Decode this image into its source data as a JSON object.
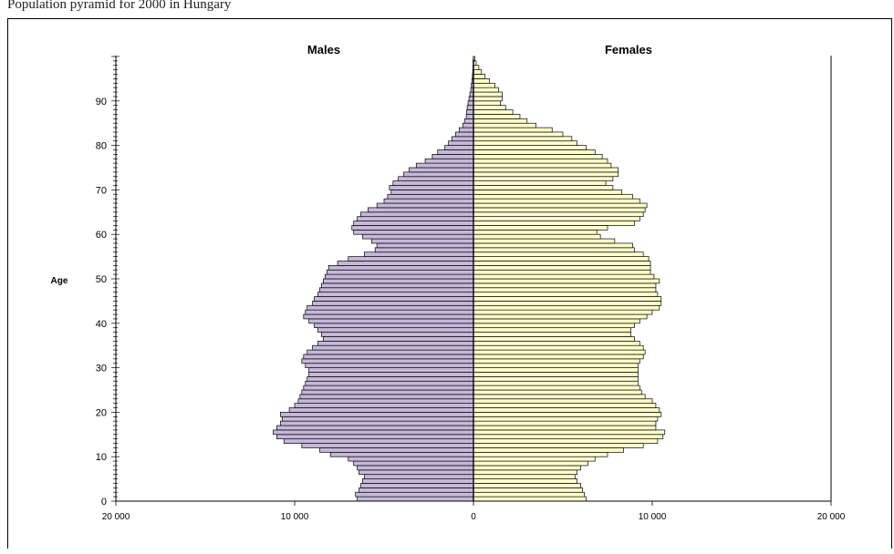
{
  "caption": "Population pyramid for 2000 in Hungary",
  "chart_data": {
    "type": "bar",
    "orientation": "horizontal",
    "title_left": "Males",
    "title_right": "Females",
    "ylabel": "Age",
    "xlim": [
      -20000,
      20000
    ],
    "ylim": [
      0,
      100
    ],
    "x_ticks": [
      -20000,
      -10000,
      0,
      10000,
      20000
    ],
    "x_tick_labels": [
      "20 000",
      "10 000",
      "0",
      "10 000",
      "20 000"
    ],
    "y_ticks": [
      0,
      10,
      20,
      30,
      40,
      50,
      60,
      70,
      80,
      90
    ],
    "y_tick_labels": [
      "0",
      "10",
      "20",
      "30",
      "40",
      "50",
      "60",
      "70",
      "80",
      "90"
    ],
    "colors": {
      "males": "#c5b8d9",
      "females": "#ffffcc",
      "outline": "#000000"
    },
    "ages": [
      0,
      1,
      2,
      3,
      4,
      5,
      6,
      7,
      8,
      9,
      10,
      11,
      12,
      13,
      14,
      15,
      16,
      17,
      18,
      19,
      20,
      21,
      22,
      23,
      24,
      25,
      26,
      27,
      28,
      29,
      30,
      31,
      32,
      33,
      34,
      35,
      36,
      37,
      38,
      39,
      40,
      41,
      42,
      43,
      44,
      45,
      46,
      47,
      48,
      49,
      50,
      51,
      52,
      53,
      54,
      55,
      56,
      57,
      58,
      59,
      60,
      61,
      62,
      63,
      64,
      65,
      66,
      67,
      68,
      69,
      70,
      71,
      72,
      73,
      74,
      75,
      76,
      77,
      78,
      79,
      80,
      81,
      82,
      83,
      84,
      85,
      86,
      87,
      88,
      89,
      90,
      91,
      92,
      93,
      94,
      95,
      96,
      97,
      98,
      99
    ],
    "series": [
      {
        "name": "Males",
        "values": [
          6500,
          6600,
          6400,
          6300,
          6200,
          6100,
          6400,
          6500,
          6700,
          7000,
          8000,
          8600,
          9600,
          10600,
          11000,
          11200,
          11000,
          10800,
          10700,
          10800,
          10300,
          10000,
          9800,
          9700,
          9600,
          9500,
          9400,
          9300,
          9200,
          9200,
          9400,
          9600,
          9500,
          9300,
          9000,
          8700,
          8400,
          8500,
          8700,
          8900,
          9200,
          9500,
          9400,
          9300,
          9000,
          8900,
          8700,
          8600,
          8500,
          8400,
          8300,
          8200,
          8100,
          7600,
          7000,
          6100,
          5500,
          5400,
          5700,
          6200,
          6700,
          6800,
          6700,
          6500,
          6300,
          5900,
          5400,
          5000,
          4800,
          4600,
          4700,
          4500,
          4200,
          3900,
          3600,
          3200,
          2700,
          2300,
          2000,
          1600,
          1400,
          1200,
          1000,
          800,
          600,
          500,
          400,
          380,
          350,
          300,
          250,
          200,
          150,
          120,
          90,
          60,
          40,
          25,
          15,
          10
        ]
      },
      {
        "name": "Females",
        "values": [
          6300,
          6200,
          6100,
          6000,
          5800,
          5700,
          5800,
          6000,
          6400,
          6800,
          7500,
          8400,
          9500,
          10300,
          10600,
          10700,
          10200,
          10200,
          10300,
          10500,
          10400,
          10200,
          10000,
          9600,
          9400,
          9300,
          9200,
          9200,
          9200,
          9200,
          9200,
          9300,
          9500,
          9600,
          9500,
          9300,
          9000,
          8800,
          8800,
          9000,
          9300,
          9700,
          10000,
          10400,
          10500,
          10500,
          10300,
          10200,
          10200,
          10400,
          10100,
          9900,
          9900,
          9900,
          9800,
          9500,
          9000,
          8900,
          7900,
          7100,
          6900,
          7500,
          9000,
          9300,
          9500,
          9600,
          9700,
          9300,
          8900,
          8300,
          7800,
          7400,
          7800,
          8100,
          8100,
          7700,
          7500,
          7200,
          6800,
          6300,
          5800,
          5500,
          5000,
          4400,
          3500,
          3000,
          2600,
          2200,
          1800,
          1500,
          1600,
          1600,
          1400,
          1200,
          900,
          650,
          450,
          300,
          150,
          80
        ]
      }
    ]
  }
}
